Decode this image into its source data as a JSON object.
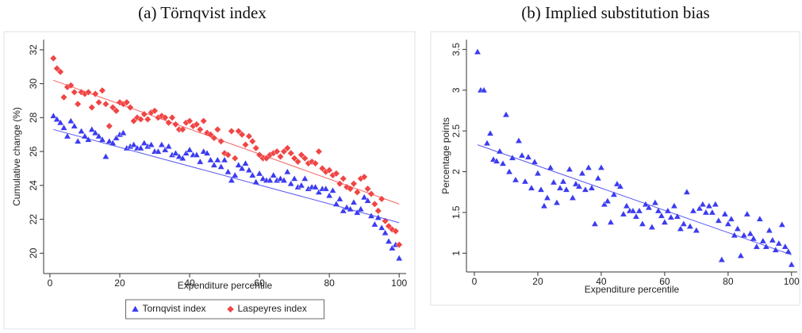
{
  "chart_data": [
    {
      "type": "scatter",
      "title": "(a) Törnqvist index",
      "x_label": "Expenditure percentile",
      "y_label": "Cumulative change (%)",
      "xlim": [
        -1.8,
        102
      ],
      "ylim": [
        18.8,
        32.6
      ],
      "xticks": [
        0,
        20,
        40,
        60,
        80,
        100
      ],
      "yticks": [
        20,
        22,
        24,
        26,
        28,
        30,
        32
      ],
      "legend": "bottom",
      "x": [
        1,
        2,
        3,
        4,
        5,
        6,
        7,
        8,
        9,
        10,
        11,
        12,
        13,
        14,
        15,
        16,
        17,
        18,
        19,
        20,
        21,
        22,
        23,
        24,
        25,
        26,
        27,
        28,
        29,
        30,
        31,
        32,
        33,
        34,
        35,
        36,
        37,
        38,
        39,
        40,
        41,
        42,
        43,
        44,
        45,
        46,
        47,
        48,
        49,
        50,
        51,
        52,
        53,
        54,
        55,
        56,
        57,
        58,
        59,
        60,
        61,
        62,
        63,
        64,
        65,
        66,
        67,
        68,
        69,
        70,
        71,
        72,
        73,
        74,
        75,
        76,
        77,
        78,
        79,
        80,
        81,
        82,
        83,
        84,
        85,
        86,
        87,
        88,
        89,
        90,
        91,
        92,
        93,
        94,
        95,
        96,
        97,
        98,
        99,
        100
      ],
      "series": [
        {
          "name": "Tornqvist index",
          "color": "#3b3bf0",
          "marker": "triangle",
          "fit": {
            "x": [
              1,
              100
            ],
            "y": [
              27.3,
              21.8
            ]
          },
          "values": [
            28.1,
            27.9,
            27.7,
            27.4,
            26.9,
            27.8,
            27.5,
            26.6,
            27.2,
            26.9,
            26.7,
            27.3,
            27.1,
            26.9,
            26.7,
            25.7,
            26.6,
            26.5,
            26.8,
            27.0,
            27.1,
            26.2,
            26.3,
            26.4,
            26.2,
            26.2,
            26.5,
            26.3,
            26.4,
            26.0,
            26.0,
            26.4,
            26.1,
            26.3,
            25.8,
            25.9,
            25.7,
            25.6,
            25.9,
            26.1,
            25.8,
            25.8,
            25.4,
            26.0,
            25.9,
            25.5,
            25.2,
            25.5,
            25.1,
            25.5,
            24.8,
            24.3,
            24.6,
            25.2,
            25.0,
            25.3,
            24.9,
            24.6,
            24.2,
            24.7,
            24.4,
            24.3,
            24.3,
            24.6,
            24.3,
            24.4,
            24.3,
            24.8,
            24.1,
            24.4,
            23.9,
            24.0,
            24.4,
            23.8,
            23.9,
            23.9,
            23.6,
            23.8,
            23.8,
            23.4,
            23.7,
            22.9,
            23.2,
            22.5,
            22.7,
            22.6,
            23.0,
            22.4,
            22.6,
            23.3,
            23.1,
            22.2,
            21.7,
            22.1,
            21.5,
            21.2,
            20.7,
            20.3,
            20.5,
            19.7
          ]
        },
        {
          "name": "Laspeyres index",
          "color": "#f04545",
          "marker": "diamond",
          "fit": {
            "x": [
              1,
              100
            ],
            "y": [
              30.2,
              22.9
            ]
          },
          "values": [
            31.5,
            30.9,
            30.7,
            29.2,
            29.8,
            29.9,
            29.5,
            28.8,
            29.5,
            29.4,
            29.5,
            28.6,
            29.4,
            28.9,
            29.6,
            28.8,
            27.5,
            28.6,
            28.4,
            28.9,
            28.8,
            28.9,
            28.6,
            27.8,
            28.0,
            27.9,
            28.2,
            27.9,
            28.3,
            28.4,
            28.0,
            28.1,
            28.0,
            27.7,
            28.0,
            27.6,
            27.3,
            27.3,
            27.7,
            27.8,
            27.5,
            27.6,
            27.3,
            27.8,
            27.1,
            27.0,
            26.8,
            27.3,
            26.6,
            25.9,
            25.8,
            27.2,
            25.6,
            27.2,
            27.0,
            26.4,
            26.9,
            26.6,
            26.2,
            25.8,
            25.6,
            25.6,
            25.8,
            25.9,
            26.0,
            25.7,
            26.0,
            26.2,
            25.9,
            25.6,
            25.4,
            25.8,
            25.6,
            25.3,
            25.4,
            25.3,
            26.0,
            25.0,
            24.8,
            24.9,
            24.6,
            24.7,
            24.1,
            24.4,
            23.9,
            23.8,
            24.1,
            23.6,
            24.4,
            24.5,
            23.8,
            23.5,
            22.9,
            22.5,
            23.2,
            21.9,
            21.6,
            21.4,
            21.3,
            20.5
          ]
        }
      ]
    },
    {
      "type": "scatter",
      "title": "(b) Implied substitution bias",
      "x_label": "Expenditure percentile",
      "y_label": "Percentage points",
      "xlim": [
        -2.5,
        101.8
      ],
      "ylim": [
        0.77,
        3.62
      ],
      "xticks": [
        0,
        20,
        40,
        60,
        80,
        100
      ],
      "yticks": [
        1,
        1.5,
        2,
        2.5,
        3,
        3.5
      ],
      "x": [
        1,
        2,
        3,
        4,
        5,
        6,
        7,
        8,
        9,
        10,
        11,
        12,
        13,
        14,
        15,
        16,
        17,
        18,
        19,
        20,
        21,
        22,
        23,
        24,
        25,
        26,
        27,
        28,
        29,
        30,
        31,
        32,
        33,
        34,
        35,
        36,
        37,
        38,
        39,
        40,
        41,
        42,
        43,
        44,
        45,
        46,
        47,
        48,
        49,
        50,
        51,
        52,
        53,
        54,
        55,
        56,
        57,
        58,
        59,
        60,
        61,
        62,
        63,
        64,
        65,
        66,
        67,
        68,
        69,
        70,
        71,
        72,
        73,
        74,
        75,
        76,
        77,
        78,
        79,
        80,
        81,
        82,
        83,
        84,
        85,
        86,
        87,
        88,
        89,
        90,
        91,
        92,
        93,
        94,
        95,
        96,
        97,
        98,
        99,
        100
      ],
      "series": [
        {
          "color": "#3b3bf0",
          "marker": "triangle",
          "fit": {
            "x": [
              1,
              100
            ],
            "y": [
              2.33,
              0.98
            ]
          },
          "values": [
            3.47,
            3.0,
            3.0,
            2.35,
            2.47,
            2.15,
            2.13,
            2.25,
            2.1,
            2.7,
            2.0,
            2.17,
            1.9,
            2.38,
            2.2,
            1.88,
            2.18,
            1.8,
            2.12,
            1.98,
            1.78,
            1.58,
            1.68,
            2.05,
            1.87,
            1.62,
            1.8,
            1.88,
            1.78,
            2.03,
            1.68,
            1.85,
            1.82,
            1.98,
            1.78,
            2.05,
            1.8,
            1.36,
            1.92,
            2.05,
            1.6,
            1.64,
            1.38,
            1.72,
            1.85,
            1.82,
            1.48,
            1.58,
            1.52,
            1.52,
            1.45,
            1.52,
            1.36,
            1.6,
            1.56,
            1.32,
            1.62,
            1.52,
            1.46,
            1.38,
            1.52,
            1.44,
            1.58,
            1.45,
            1.3,
            1.36,
            1.75,
            1.33,
            1.52,
            1.28,
            1.55,
            1.6,
            1.5,
            1.58,
            1.5,
            1.6,
            1.4,
            0.92,
            1.48,
            1.36,
            1.42,
            1.22,
            1.3,
            0.97,
            1.22,
            1.48,
            1.24,
            1.18,
            1.08,
            1.42,
            1.15,
            1.08,
            1.28,
            1.16,
            1.04,
            1.12,
            1.35,
            1.08,
            1.02,
            0.86
          ]
        }
      ]
    }
  ]
}
